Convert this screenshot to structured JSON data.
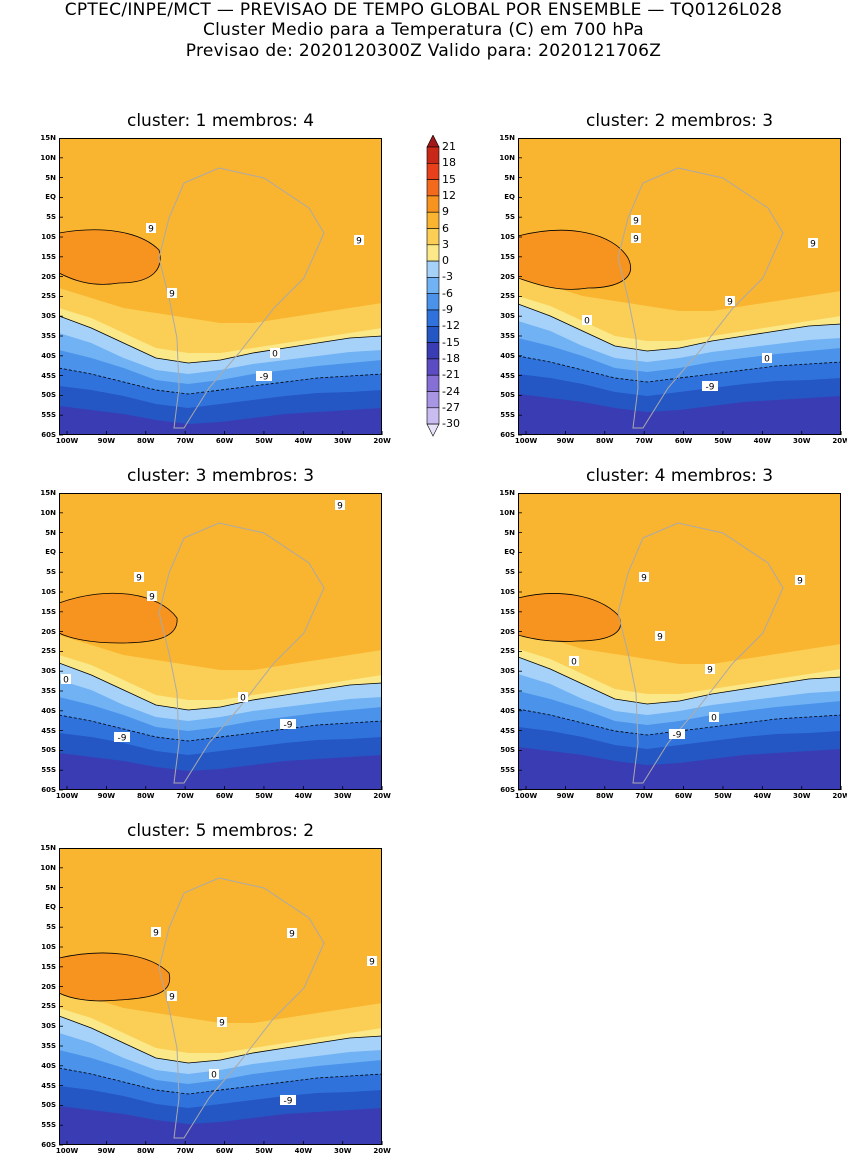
{
  "header": {
    "line1": "CPTEC/INPE/MCT — PREVISAO DE TEMPO GLOBAL POR ENSEMBLE — TQ0126L028",
    "line2": "Cluster Medio para a Temperatura (C) em 700 hPa",
    "line3": "Previsao de: 2020120300Z    Valido para: 2020121706Z"
  },
  "lat_labels": [
    "15N",
    "10N",
    "5N",
    "EQ",
    "5S",
    "10S",
    "15S",
    "20S",
    "25S",
    "30S",
    "35S",
    "40S",
    "45S",
    "50S",
    "55S",
    "60S"
  ],
  "lon_labels": [
    "100W",
    "90W",
    "80W",
    "70W",
    "60W",
    "50W",
    "40W",
    "30W",
    "20W"
  ],
  "colorbar": {
    "labels": [
      "21",
      "18",
      "15",
      "12",
      "9",
      "6",
      "3",
      "0",
      "-3",
      "-6",
      "-9",
      "-12",
      "-15",
      "-18",
      "-21",
      "-24",
      "-27",
      "-30"
    ],
    "colors": [
      "#a01818",
      "#c82818",
      "#e8401a",
      "#f46a1c",
      "#f79420",
      "#f9b430",
      "#fbcf55",
      "#fbe888",
      "#a6d2fa",
      "#70b2f4",
      "#4a92ea",
      "#3072dc",
      "#2456c4",
      "#3a3cb4",
      "#5c4cc4",
      "#8670d6",
      "#a896e4",
      "#c8bcf0",
      "#e8e2fa"
    ]
  },
  "clusters": [
    {
      "title": "cluster: 1   membros: 4",
      "labels": [
        {
          "t": "9",
          "x": 92,
          "y": 90
        },
        {
          "t": "9",
          "x": 113,
          "y": 155
        },
        {
          "t": "9",
          "x": 300,
          "y": 102
        },
        {
          "t": "0",
          "x": 216,
          "y": 215
        },
        {
          "t": "-9",
          "x": 205,
          "y": 238
        }
      ]
    },
    {
      "title": "cluster: 2   membros: 3",
      "labels": [
        {
          "t": "9",
          "x": 118,
          "y": 82
        },
        {
          "t": "9",
          "x": 118,
          "y": 100
        },
        {
          "t": "9",
          "x": 295,
          "y": 105
        },
        {
          "t": "9",
          "x": 212,
          "y": 163
        },
        {
          "t": "0",
          "x": 69,
          "y": 182
        },
        {
          "t": "0",
          "x": 249,
          "y": 220
        },
        {
          "t": "-9",
          "x": 192,
          "y": 248
        }
      ]
    },
    {
      "title": "cluster: 3   membros: 3",
      "labels": [
        {
          "t": "9",
          "x": 80,
          "y": 84
        },
        {
          "t": "9",
          "x": 93,
          "y": 103
        },
        {
          "t": "9",
          "x": 281,
          "y": 12
        },
        {
          "t": "0",
          "x": 7,
          "y": 186
        },
        {
          "t": "0",
          "x": 184,
          "y": 204
        },
        {
          "t": "-9",
          "x": 63,
          "y": 244
        },
        {
          "t": "-9",
          "x": 229,
          "y": 231
        }
      ]
    },
    {
      "title": "cluster: 4   membros: 3",
      "labels": [
        {
          "t": "9",
          "x": 126,
          "y": 84
        },
        {
          "t": "9",
          "x": 142,
          "y": 143
        },
        {
          "t": "9",
          "x": 192,
          "y": 176
        },
        {
          "t": "9",
          "x": 282,
          "y": 87
        },
        {
          "t": "0",
          "x": 56,
          "y": 168
        },
        {
          "t": "0",
          "x": 196,
          "y": 224
        },
        {
          "t": "-9",
          "x": 159,
          "y": 241
        }
      ]
    },
    {
      "title": "cluster: 5   membros: 2",
      "labels": [
        {
          "t": "9",
          "x": 97,
          "y": 84
        },
        {
          "t": "9",
          "x": 113,
          "y": 148
        },
        {
          "t": "9",
          "x": 163,
          "y": 174
        },
        {
          "t": "9",
          "x": 233,
          "y": 85
        },
        {
          "t": "9",
          "x": 313,
          "y": 113
        },
        {
          "t": "0",
          "x": 155,
          "y": 226
        },
        {
          "t": "-9",
          "x": 229,
          "y": 252
        }
      ]
    }
  ]
}
